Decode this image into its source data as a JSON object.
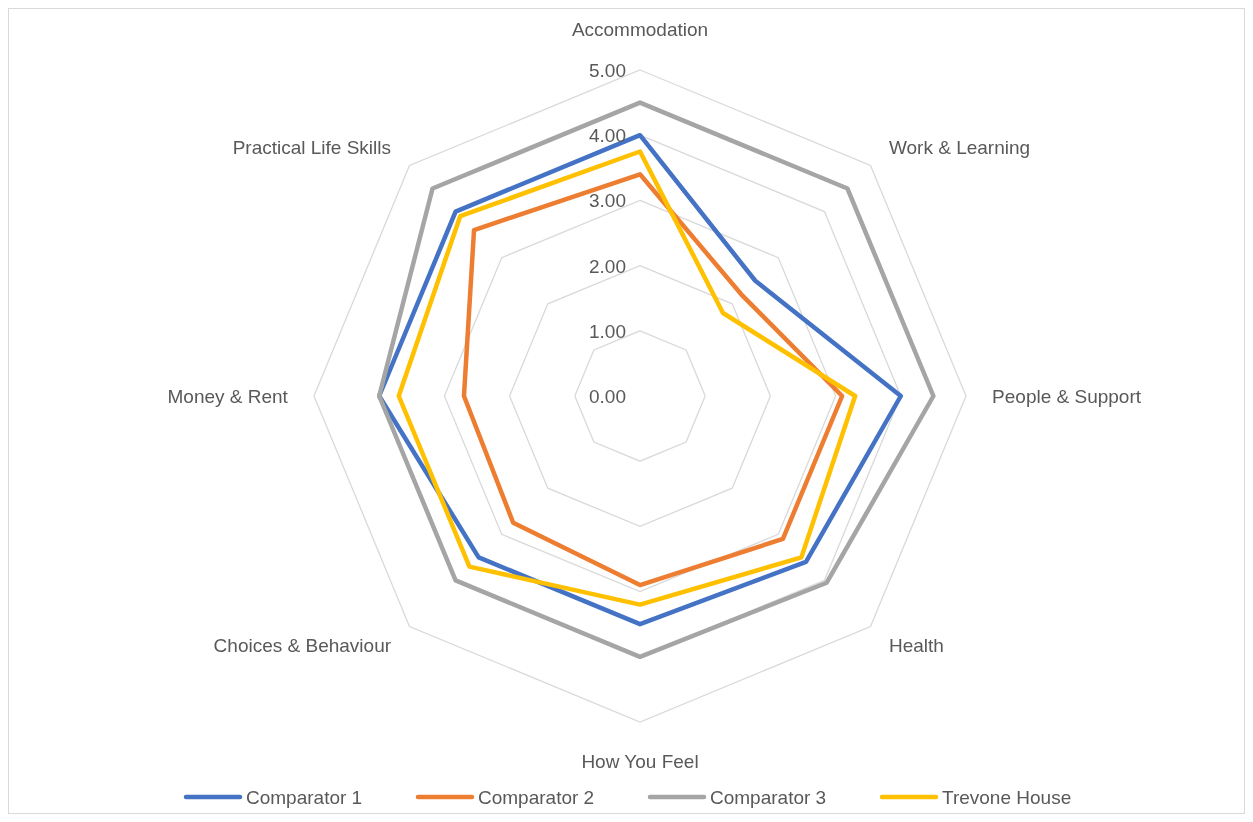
{
  "chart_data": {
    "type": "radar",
    "categories": [
      "Accommodation",
      "Work & Learning",
      "People & Support",
      "Health",
      "How You Feel",
      "Choices & Behaviour",
      "Money & Rent",
      "Practical Life Skills"
    ],
    "series": [
      {
        "name": "Comparator 1",
        "color": "#4472c4",
        "values": [
          4.0,
          2.5,
          4.0,
          3.6,
          3.5,
          3.5,
          4.0,
          4.0
        ]
      },
      {
        "name": "Comparator 2",
        "color": "#ed7d31",
        "values": [
          3.4,
          2.2,
          3.1,
          3.1,
          2.9,
          2.75,
          2.7,
          3.6
        ]
      },
      {
        "name": "Comparator 3",
        "color": "#a5a5a5",
        "values": [
          4.5,
          4.5,
          4.5,
          4.05,
          4.0,
          4.0,
          4.0,
          4.5
        ]
      },
      {
        "name": "Trevone House",
        "color": "#ffc000",
        "values": [
          3.75,
          1.8,
          3.3,
          3.5,
          3.2,
          3.7,
          3.7,
          3.9
        ]
      }
    ],
    "ylim": [
      0,
      5
    ],
    "yticks": [
      {
        "value": 0,
        "label": "0.00"
      },
      {
        "value": 1,
        "label": "1.00"
      },
      {
        "value": 2,
        "label": "2.00"
      },
      {
        "value": 3,
        "label": "3.00"
      },
      {
        "value": 4,
        "label": "4.00"
      },
      {
        "value": 5,
        "label": "5.00"
      }
    ],
    "grid": true,
    "legend": "bottom",
    "marker": "none",
    "line_style": "solid"
  }
}
